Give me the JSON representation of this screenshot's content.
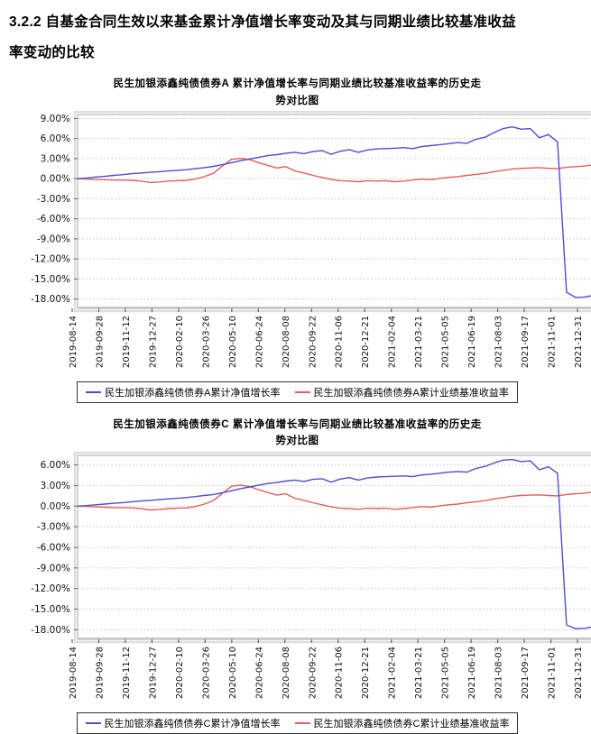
{
  "heading": {
    "line1": "3.2.2 自基金合同生效以来基金累计净值增长率变动及其与同期业绩比较基准收益",
    "line2": "率变动的比较"
  },
  "colors": {
    "fund_line": "#4d4ed2",
    "benchmark_line": "#e25f5f",
    "grid": "#d3d3d3",
    "plot_border": "#a8a8a8",
    "outer_frame": "#dedede",
    "axis_tick": "#666666"
  },
  "chart_data": [
    {
      "type": "line",
      "title_line1": "民生加银添鑫纯债债券A 累计净值增长率与同期业绩比较基准收益率的历史走",
      "title_line2": "势对比图",
      "legend_position": "bottom",
      "grid": "horizontal-dashed",
      "ylim": [
        -19.4,
        9.6
      ],
      "y_ticks": [
        9,
        6,
        3,
        0,
        -3,
        -6,
        -9,
        -12,
        -15,
        -18
      ],
      "y_tick_labels": [
        "9.00%",
        "6.00%",
        "3.00%",
        "0.00%",
        "-3.00%",
        "-6.00%",
        "-9.00%",
        "-12.00%",
        "-15.00%",
        "-18.00%"
      ],
      "categories": [
        "2019-08-14",
        "2019-09-28",
        "2019-11-12",
        "2019-12-27",
        "2020-02-10",
        "2020-03-26",
        "2020-05-10",
        "2020-06-24",
        "2020-08-08",
        "2020-09-22",
        "2020-11-06",
        "2020-12-21",
        "2021-02-04",
        "2021-03-21",
        "2021-05-05",
        "2021-06-19",
        "2021-08-03",
        "2021-09-17",
        "2021-11-01",
        "2021-12-31"
      ],
      "series": [
        {
          "name": "民生加银添鑫纯债债券A累计净值增长率",
          "color": "#4d4ed2",
          "values": [
            0.0,
            0.1,
            0.25,
            0.35,
            0.5,
            0.6,
            0.75,
            0.85,
            0.95,
            1.05,
            1.15,
            1.25,
            1.35,
            1.5,
            1.65,
            1.85,
            2.1,
            2.4,
            2.7,
            2.95,
            3.2,
            3.45,
            3.6,
            3.8,
            3.95,
            3.75,
            4.05,
            4.2,
            3.65,
            4.1,
            4.35,
            3.95,
            4.3,
            4.45,
            4.5,
            4.55,
            4.65,
            4.5,
            4.8,
            4.95,
            5.1,
            5.25,
            5.4,
            5.3,
            5.9,
            6.2,
            6.9,
            7.5,
            7.75,
            7.4,
            7.5,
            6.1,
            6.6,
            5.5,
            -17.0,
            -17.75,
            -17.7,
            -17.45
          ]
        },
        {
          "name": "民生加银添鑫纯债债券A累计业绩基准收益率",
          "color": "#e25f5f",
          "values": [
            0.0,
            -0.05,
            -0.1,
            -0.15,
            -0.2,
            -0.2,
            -0.25,
            -0.35,
            -0.55,
            -0.5,
            -0.35,
            -0.3,
            -0.25,
            -0.05,
            0.3,
            0.8,
            1.9,
            2.9,
            3.05,
            2.85,
            2.4,
            2.0,
            1.6,
            1.8,
            1.15,
            0.85,
            0.5,
            0.2,
            -0.1,
            -0.3,
            -0.35,
            -0.45,
            -0.3,
            -0.35,
            -0.3,
            -0.45,
            -0.35,
            -0.2,
            -0.05,
            -0.15,
            0.05,
            0.2,
            0.3,
            0.5,
            0.65,
            0.8,
            1.05,
            1.25,
            1.45,
            1.55,
            1.6,
            1.65,
            1.55,
            1.5,
            1.7,
            1.8,
            1.9,
            2.1
          ]
        }
      ]
    },
    {
      "type": "line",
      "title_line1": "民生加银添鑫纯债债券C 累计净值增长率与同期业绩比较基准收益率的历史走",
      "title_line2": "势对比图",
      "legend_position": "bottom",
      "grid": "horizontal-dashed",
      "ylim": [
        -19.4,
        7.4
      ],
      "y_ticks": [
        6,
        3,
        0,
        -3,
        -6,
        -9,
        -12,
        -15,
        -18
      ],
      "y_tick_labels": [
        "6.00%",
        "3.00%",
        "0.00%",
        "-3.00%",
        "-6.00%",
        "-9.00%",
        "-12.00%",
        "-15.00%",
        "-18.00%"
      ],
      "categories": [
        "2019-08-14",
        "2019-09-28",
        "2019-11-12",
        "2019-12-27",
        "2020-02-10",
        "2020-03-26",
        "2020-05-10",
        "2020-06-24",
        "2020-08-08",
        "2020-09-22",
        "2020-11-06",
        "2020-12-21",
        "2021-02-04",
        "2021-03-21",
        "2021-05-05",
        "2021-06-19",
        "2021-08-03",
        "2021-09-17",
        "2021-11-01",
        "2021-12-31"
      ],
      "series": [
        {
          "name": "民生加银添鑫纯债债券C累计净值增长率",
          "color": "#4d4ed2",
          "values": [
            0.0,
            0.08,
            0.2,
            0.3,
            0.42,
            0.52,
            0.65,
            0.75,
            0.85,
            0.95,
            1.05,
            1.15,
            1.25,
            1.4,
            1.55,
            1.7,
            1.95,
            2.25,
            2.55,
            2.8,
            3.05,
            3.3,
            3.45,
            3.65,
            3.8,
            3.6,
            3.9,
            4.0,
            3.5,
            3.95,
            4.15,
            3.8,
            4.1,
            4.25,
            4.3,
            4.35,
            4.4,
            4.3,
            4.55,
            4.65,
            4.8,
            4.95,
            5.05,
            4.95,
            5.5,
            5.8,
            6.3,
            6.7,
            6.8,
            6.5,
            6.6,
            5.3,
            5.75,
            4.8,
            -17.3,
            -17.85,
            -17.8,
            -17.55
          ]
        },
        {
          "name": "民生加银添鑫纯债债券C累计业绩基准收益率",
          "color": "#e25f5f",
          "values": [
            0.0,
            -0.05,
            -0.1,
            -0.15,
            -0.2,
            -0.2,
            -0.25,
            -0.35,
            -0.55,
            -0.5,
            -0.35,
            -0.3,
            -0.25,
            -0.05,
            0.3,
            0.8,
            1.9,
            2.9,
            3.05,
            2.85,
            2.4,
            2.0,
            1.6,
            1.8,
            1.15,
            0.85,
            0.5,
            0.2,
            -0.1,
            -0.3,
            -0.35,
            -0.45,
            -0.3,
            -0.35,
            -0.3,
            -0.45,
            -0.35,
            -0.2,
            -0.05,
            -0.15,
            0.05,
            0.2,
            0.3,
            0.5,
            0.65,
            0.8,
            1.05,
            1.25,
            1.45,
            1.55,
            1.6,
            1.65,
            1.55,
            1.5,
            1.7,
            1.8,
            1.9,
            2.1
          ]
        }
      ]
    }
  ]
}
